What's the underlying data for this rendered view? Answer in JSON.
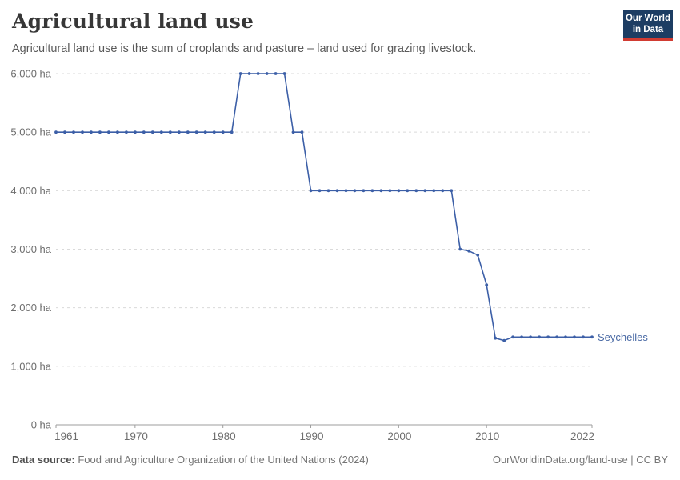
{
  "logo": {
    "line1": "Our World",
    "line2": "in Data"
  },
  "footer": {
    "source_label": "Data source:",
    "source_text": " Food and Agriculture Organization of the United Nations (2024)",
    "credit": "OurWorldinData.org/land-use | CC BY"
  },
  "chart_data": {
    "type": "line",
    "title": "Agricultural land use",
    "subtitle": "Agricultural land use is the sum of croplands and pasture – land used for grazing livestock.",
    "unit": "ha",
    "xlim": [
      1961,
      2022
    ],
    "ylim": [
      0,
      6000
    ],
    "grid": "horizontal-dashed",
    "legend_position": "end-of-line-label",
    "x_ticks": [
      1961,
      1970,
      1980,
      1990,
      2000,
      2010,
      2022
    ],
    "y_ticks": [
      0,
      1000,
      2000,
      3000,
      4000,
      5000,
      6000
    ],
    "y_tick_labels": [
      "0 ha",
      "1,000 ha",
      "2,000 ha",
      "3,000 ha",
      "4,000 ha",
      "5,000 ha",
      "6,000 ha"
    ],
    "colors": {
      "line": "#3c5fa7",
      "entity_label": "#4a6aa5",
      "grid": "#dadada",
      "axis": "#9e9e9e",
      "tick_text": "#6e6e6e"
    },
    "series": [
      {
        "name": "Seychelles",
        "points": [
          [
            1961,
            5000
          ],
          [
            1962,
            5000
          ],
          [
            1963,
            5000
          ],
          [
            1964,
            5000
          ],
          [
            1965,
            5000
          ],
          [
            1966,
            5000
          ],
          [
            1967,
            5000
          ],
          [
            1968,
            5000
          ],
          [
            1969,
            5000
          ],
          [
            1970,
            5000
          ],
          [
            1971,
            5000
          ],
          [
            1972,
            5000
          ],
          [
            1973,
            5000
          ],
          [
            1974,
            5000
          ],
          [
            1975,
            5000
          ],
          [
            1976,
            5000
          ],
          [
            1977,
            5000
          ],
          [
            1978,
            5000
          ],
          [
            1979,
            5000
          ],
          [
            1980,
            5000
          ],
          [
            1981,
            5000
          ],
          [
            1982,
            6000
          ],
          [
            1983,
            6000
          ],
          [
            1984,
            6000
          ],
          [
            1985,
            6000
          ],
          [
            1986,
            6000
          ],
          [
            1987,
            6000
          ],
          [
            1988,
            5000
          ],
          [
            1989,
            5000
          ],
          [
            1990,
            4000
          ],
          [
            1991,
            4000
          ],
          [
            1992,
            4000
          ],
          [
            1993,
            4000
          ],
          [
            1994,
            4000
          ],
          [
            1995,
            4000
          ],
          [
            1996,
            4000
          ],
          [
            1997,
            4000
          ],
          [
            1998,
            4000
          ],
          [
            1999,
            4000
          ],
          [
            2000,
            4000
          ],
          [
            2001,
            4000
          ],
          [
            2002,
            4000
          ],
          [
            2003,
            4000
          ],
          [
            2004,
            4000
          ],
          [
            2005,
            4000
          ],
          [
            2006,
            4000
          ],
          [
            2007,
            3000
          ],
          [
            2008,
            2970
          ],
          [
            2009,
            2900
          ],
          [
            2010,
            2390
          ],
          [
            2011,
            1480
          ],
          [
            2012,
            1440
          ],
          [
            2013,
            1500
          ],
          [
            2014,
            1500
          ],
          [
            2015,
            1500
          ],
          [
            2016,
            1500
          ],
          [
            2017,
            1500
          ],
          [
            2018,
            1500
          ],
          [
            2019,
            1500
          ],
          [
            2020,
            1500
          ],
          [
            2021,
            1500
          ],
          [
            2022,
            1500
          ]
        ]
      }
    ]
  }
}
